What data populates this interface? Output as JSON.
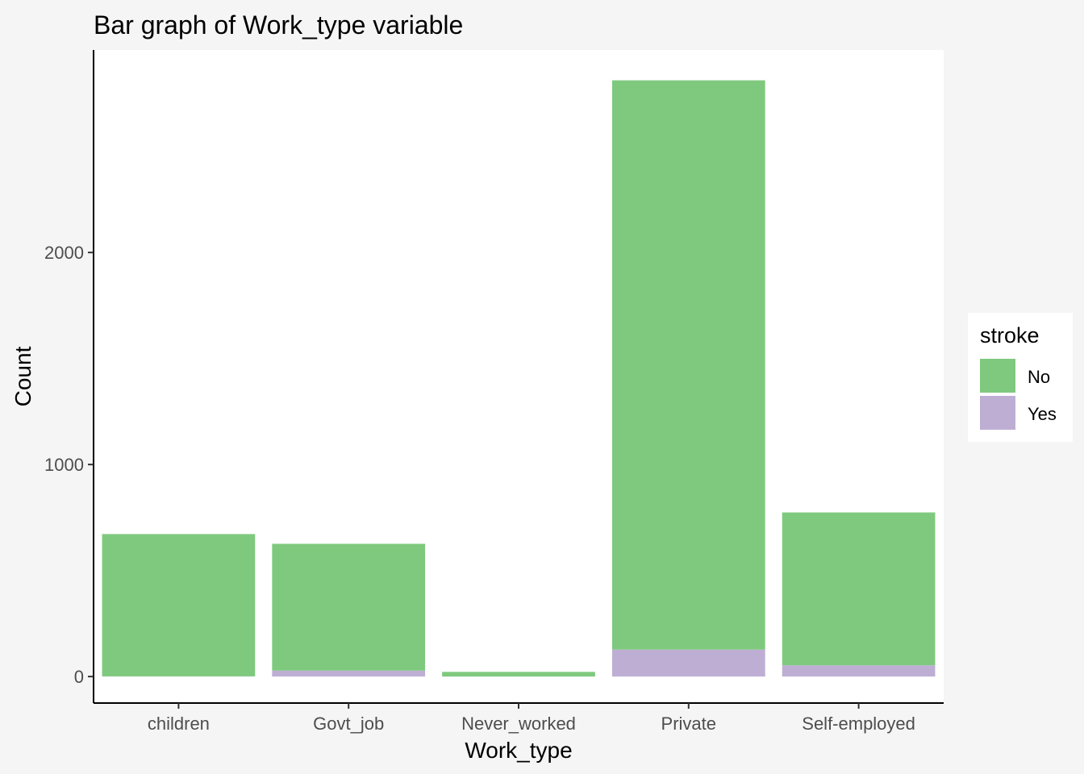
{
  "chart_data": {
    "type": "bar",
    "stacked": true,
    "title": "Bar graph of Work_type variable",
    "xlabel": "Work_type",
    "ylabel": "Count",
    "categories": [
      "children",
      "Govt_job",
      "Never_worked",
      "Private",
      "Self-employed"
    ],
    "series": [
      {
        "name": "No",
        "color": "#7fc97f",
        "values": [
          671,
          598,
          22,
          2685,
          721
        ]
      },
      {
        "name": "Yes",
        "color": "#beaed4",
        "values": [
          1,
          28,
          0,
          127,
          53
        ]
      }
    ],
    "yticks": [
      0,
      1000,
      2000
    ],
    "ytick_labels": [
      "0",
      "1000",
      "2000"
    ],
    "ylim": [
      -125,
      2955
    ],
    "grid": false,
    "legend": {
      "title": "stroke",
      "position": "right",
      "entries": [
        {
          "label": "No",
          "color": "#7fc97f"
        },
        {
          "label": "Yes",
          "color": "#beaed4"
        }
      ]
    },
    "colors": {
      "page_background": "#f5f5f5",
      "panel_background": "#ffffff",
      "axis_line": "#000000",
      "tick_text": "#4d4d4d"
    }
  }
}
